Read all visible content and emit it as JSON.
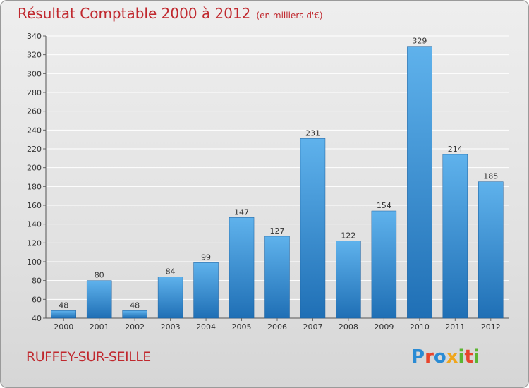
{
  "header": {
    "title": "Résultat Comptable 2000 à 2012",
    "unit": "(en milliers d'€)"
  },
  "commune": "RUFFEY-SUR-SEILLE",
  "logo": {
    "text": "Proxiti",
    "letters": [
      "P",
      "r",
      "o",
      "x",
      "i",
      "t",
      "i"
    ],
    "colors": [
      "#2a8bd4",
      "#e8452c",
      "#2a8bd4",
      "#f0a61c",
      "#5cb531",
      "#e8452c",
      "#5cb531"
    ]
  },
  "colors": {
    "title": "#c0282e",
    "bar_top": "#5fb2ec",
    "bar_bottom": "#1f6fb5",
    "grid": "#ffffff"
  },
  "chart_data": {
    "type": "bar",
    "title": "Résultat Comptable 2000 à 2012",
    "categories": [
      "2000",
      "2001",
      "2002",
      "2003",
      "2004",
      "2005",
      "2006",
      "2007",
      "2008",
      "2009",
      "2010",
      "2011",
      "2012"
    ],
    "values": [
      48,
      80,
      48,
      84,
      99,
      147,
      127,
      231,
      122,
      154,
      329,
      214,
      185
    ],
    "ylim": [
      40,
      340
    ],
    "yticks": [
      40,
      60,
      80,
      100,
      120,
      140,
      160,
      180,
      200,
      220,
      240,
      260,
      280,
      300,
      320,
      340
    ],
    "grid": true,
    "xlabel": "",
    "ylabel": ""
  }
}
